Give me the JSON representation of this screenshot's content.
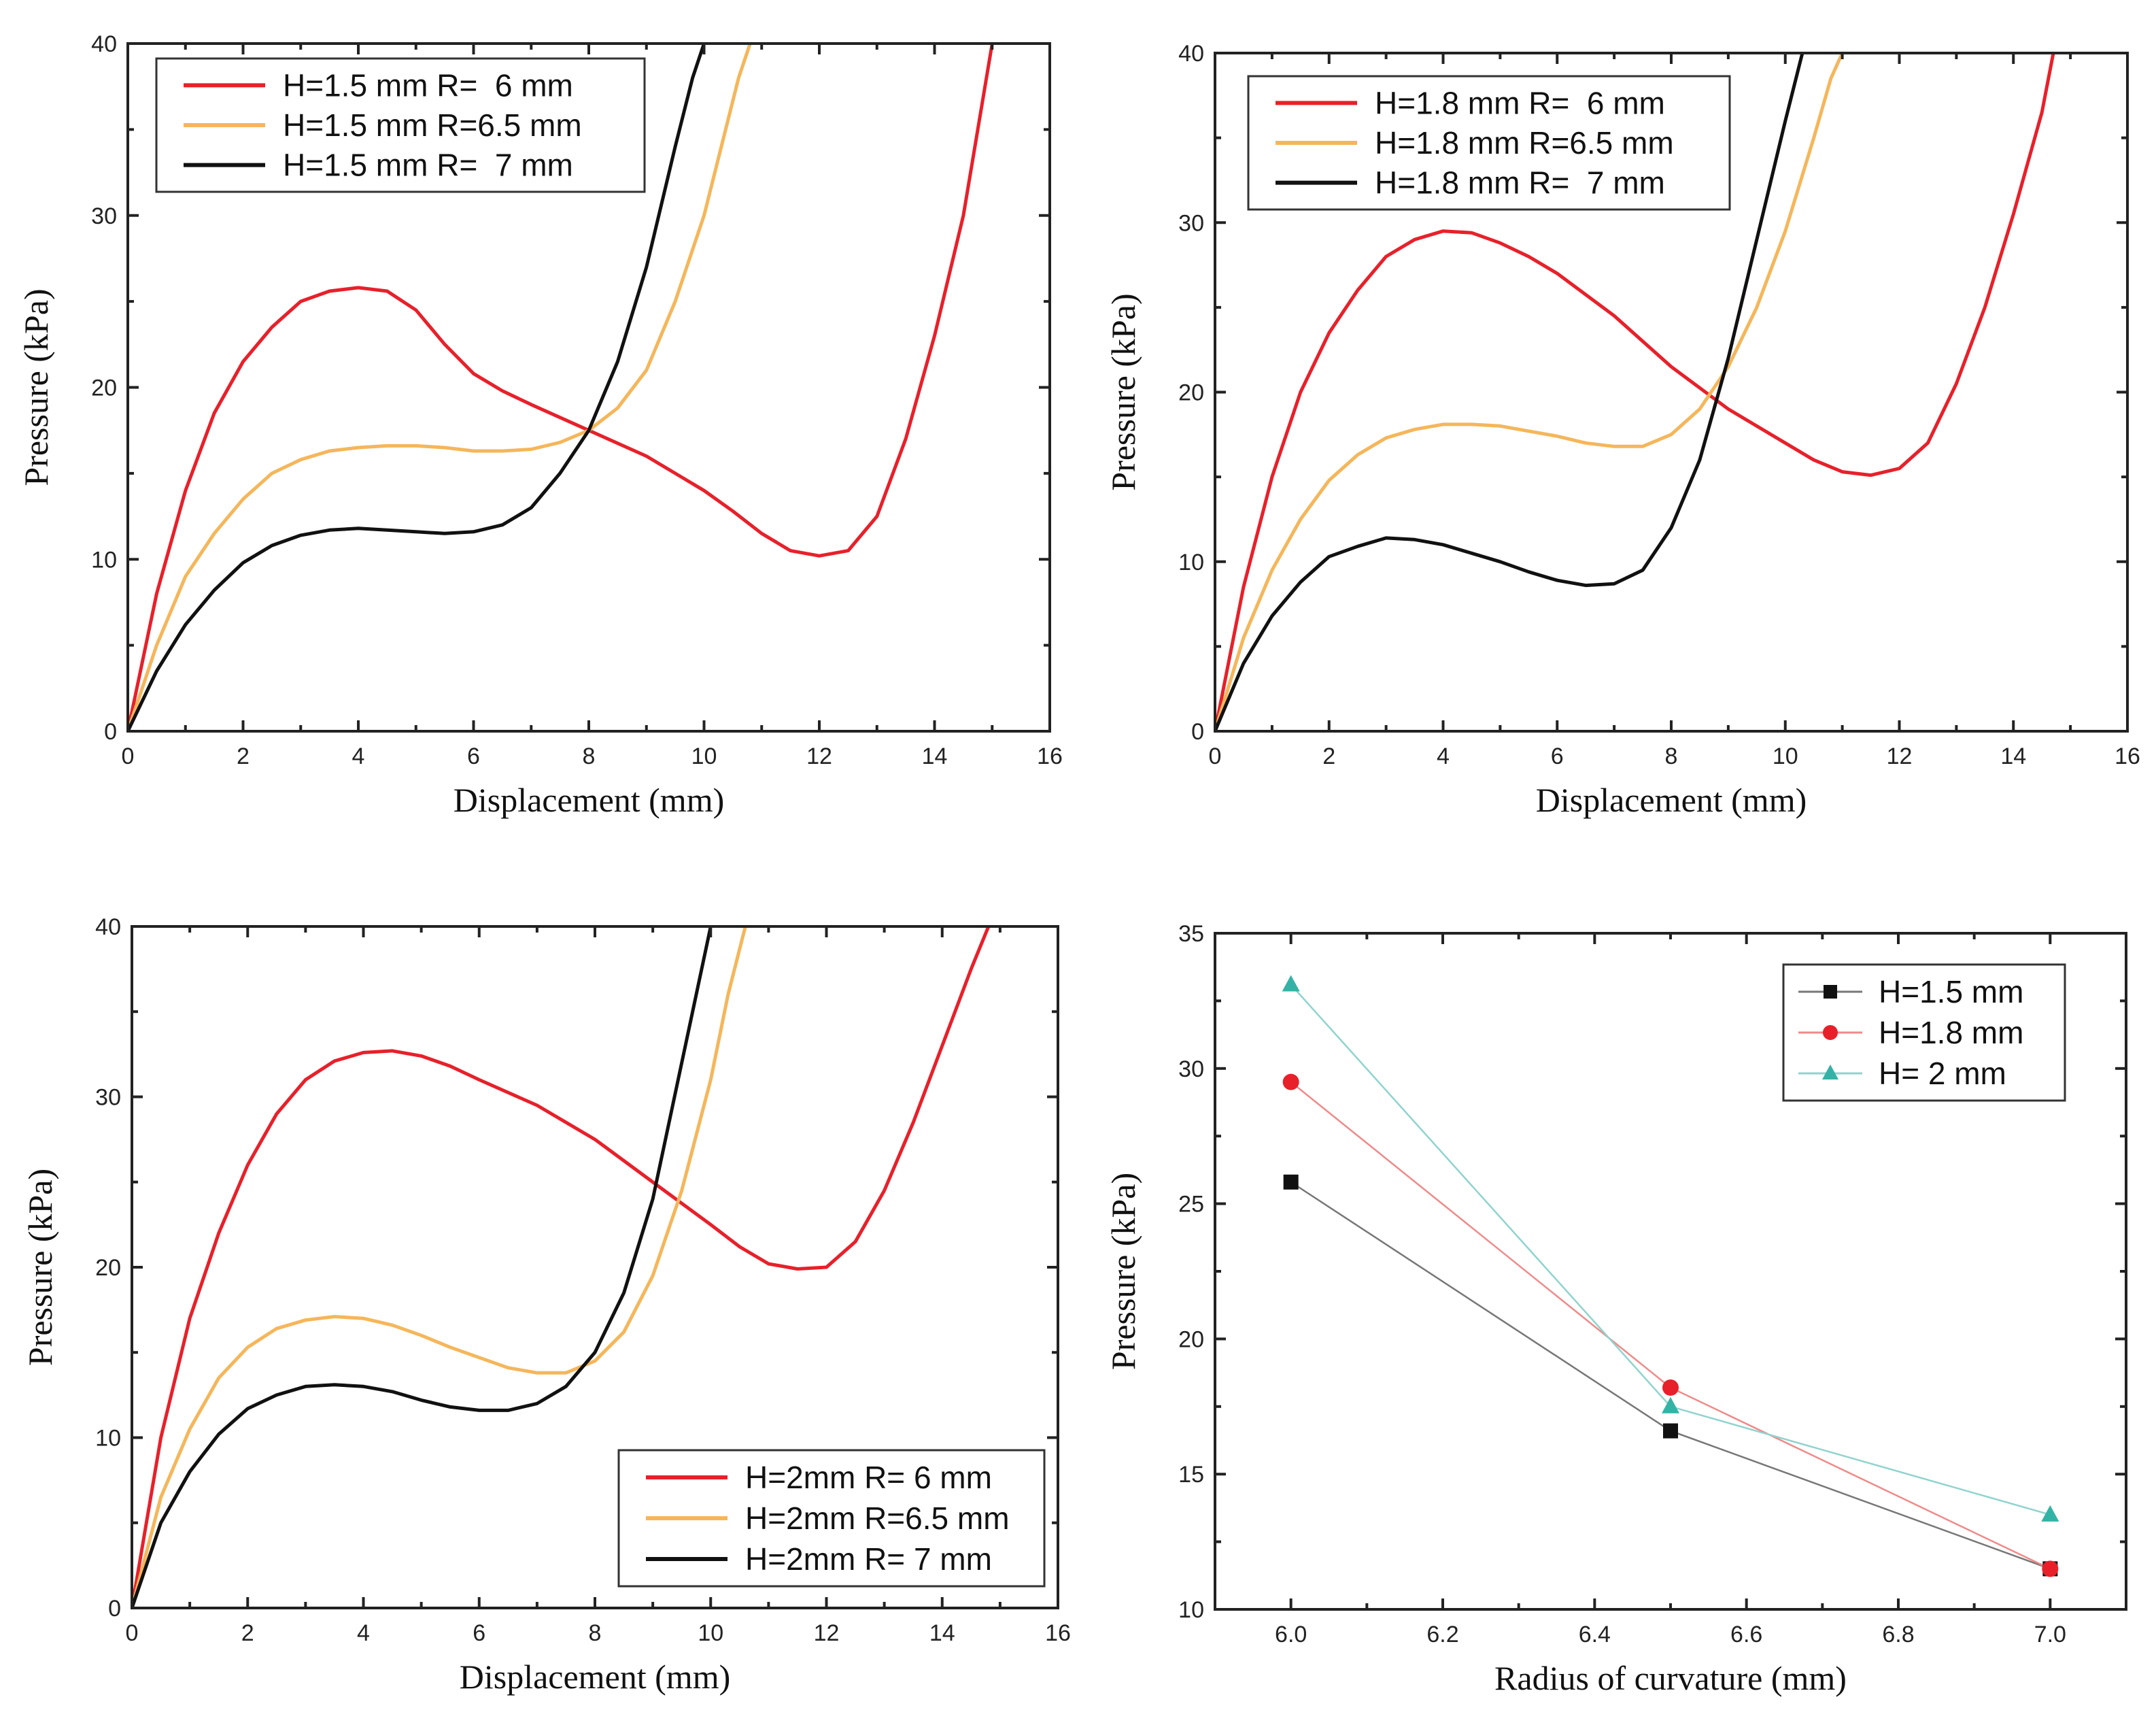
{
  "colors": {
    "red": "#e8202a",
    "orange": "#f5b65a",
    "black": "#111111",
    "pink": "#f08a8a",
    "teal": "#33b3a6",
    "thin_black": "#777777"
  },
  "chart_data": [
    {
      "type": "line",
      "xlabel": "Displacement (mm)",
      "ylabel": "Pressure (kPa)",
      "xlim": [
        0,
        16
      ],
      "ylim": [
        0,
        40
      ],
      "xticks": [
        0,
        2,
        4,
        6,
        8,
        10,
        12,
        14,
        16
      ],
      "yticks": [
        0,
        10,
        20,
        30,
        40
      ],
      "legend_position": "top-left",
      "series": [
        {
          "name": "H=1.5 mm R=  6 mm",
          "color": "#e8202a",
          "x": [
            0,
            0.5,
            1,
            1.5,
            2,
            2.5,
            3,
            3.5,
            4,
            4.5,
            5,
            5.5,
            6,
            6.5,
            7,
            8,
            9,
            10,
            10.5,
            11,
            11.5,
            12,
            12.5,
            13,
            13.5,
            14,
            14.5,
            15
          ],
          "y": [
            0,
            8,
            14,
            18.5,
            21.5,
            23.5,
            25,
            25.6,
            25.8,
            25.6,
            24.5,
            22.5,
            20.8,
            19.8,
            19,
            17.5,
            16,
            14,
            12.8,
            11.5,
            10.5,
            10.2,
            10.5,
            12.5,
            17,
            23,
            30,
            40
          ]
        },
        {
          "name": "H=1.5 mm R=6.5 mm",
          "color": "#f5b65a",
          "x": [
            0,
            0.5,
            1,
            1.5,
            2,
            2.5,
            3,
            3.5,
            4,
            4.5,
            5,
            5.5,
            6,
            6.5,
            7,
            7.5,
            8,
            8.5,
            9,
            9.5,
            10,
            10.3,
            10.6,
            10.8
          ],
          "y": [
            0,
            5,
            9,
            11.5,
            13.5,
            15,
            15.8,
            16.3,
            16.5,
            16.6,
            16.6,
            16.5,
            16.3,
            16.3,
            16.4,
            16.8,
            17.5,
            18.8,
            21,
            25,
            30,
            34,
            38,
            40
          ]
        },
        {
          "name": "H=1.5 mm R=  7 mm",
          "color": "#111111",
          "x": [
            0,
            0.5,
            1,
            1.5,
            2,
            2.5,
            3,
            3.5,
            4,
            4.5,
            5,
            5.5,
            6,
            6.5,
            7,
            7.5,
            8,
            8.5,
            9,
            9.5,
            9.8,
            10
          ],
          "y": [
            0,
            3.5,
            6.2,
            8.2,
            9.8,
            10.8,
            11.4,
            11.7,
            11.8,
            11.7,
            11.6,
            11.5,
            11.6,
            12,
            13,
            15,
            17.5,
            21.5,
            27,
            34,
            38,
            40
          ]
        }
      ]
    },
    {
      "type": "line",
      "xlabel": "Displacement (mm)",
      "ylabel": "Pressure (kPa)",
      "xlim": [
        0,
        16
      ],
      "ylim": [
        0,
        40
      ],
      "xticks": [
        0,
        2,
        4,
        6,
        8,
        10,
        12,
        14,
        16
      ],
      "yticks": [
        0,
        10,
        20,
        30,
        40
      ],
      "legend_position": "top-left",
      "series": [
        {
          "name": "H=1.8 mm R=  6 mm",
          "color": "#e8202a",
          "x": [
            0,
            0.5,
            1,
            1.5,
            2,
            2.5,
            3,
            3.5,
            4,
            4.5,
            5,
            5.5,
            6,
            7,
            8,
            9,
            10,
            10.5,
            11,
            11.5,
            12,
            12.5,
            13,
            13.5,
            14,
            14.5,
            14.7
          ],
          "y": [
            0,
            8.5,
            15,
            20,
            23.5,
            26,
            28,
            29,
            29.5,
            29.4,
            28.8,
            28,
            27,
            24.5,
            21.5,
            19,
            17,
            16,
            15.3,
            15.1,
            15.5,
            17,
            20.5,
            25,
            30.5,
            36.5,
            40
          ]
        },
        {
          "name": "H=1.8 mm R=6.5 mm",
          "color": "#f5b65a",
          "x": [
            0,
            0.5,
            1,
            1.5,
            2,
            2.5,
            3,
            3.5,
            4,
            4.5,
            5,
            5.5,
            6,
            6.5,
            7,
            7.5,
            8,
            8.5,
            9,
            9.5,
            10,
            10.5,
            10.8,
            11
          ],
          "y": [
            0,
            5.5,
            9.5,
            12.5,
            14.8,
            16.3,
            17.3,
            17.8,
            18.1,
            18.1,
            18,
            17.7,
            17.4,
            17,
            16.8,
            16.8,
            17.5,
            19,
            21.5,
            25,
            29.5,
            35,
            38.5,
            40
          ]
        },
        {
          "name": "H=1.8 mm R=  7 mm",
          "color": "#111111",
          "x": [
            0,
            0.5,
            1,
            1.5,
            2,
            2.5,
            3,
            3.5,
            4,
            4.5,
            5,
            5.5,
            6,
            6.5,
            7,
            7.5,
            8,
            8.5,
            9,
            9.5,
            10,
            10.3
          ],
          "y": [
            0,
            4,
            6.8,
            8.8,
            10.3,
            10.9,
            11.4,
            11.3,
            11,
            10.5,
            10,
            9.4,
            8.9,
            8.6,
            8.7,
            9.5,
            12,
            16,
            22,
            29,
            36,
            40
          ]
        }
      ]
    },
    {
      "type": "line",
      "xlabel": "Displacement (mm)",
      "ylabel": "Pressure (kPa)",
      "xlim": [
        0,
        16
      ],
      "ylim": [
        0,
        40
      ],
      "xticks": [
        0,
        2,
        4,
        6,
        8,
        10,
        12,
        14,
        16
      ],
      "yticks": [
        0,
        10,
        20,
        30,
        40
      ],
      "legend_position": "bottom-right",
      "series": [
        {
          "name": "H=2mm R= 6 mm",
          "color": "#e8202a",
          "x": [
            0,
            0.5,
            1,
            1.5,
            2,
            2.5,
            3,
            3.5,
            4,
            4.5,
            5,
            5.5,
            6,
            7,
            8,
            9,
            10,
            10.5,
            11,
            11.5,
            12,
            12.5,
            13,
            13.5,
            14,
            14.5,
            14.8
          ],
          "y": [
            0,
            10,
            17,
            22,
            26,
            29,
            31,
            32.1,
            32.6,
            32.7,
            32.4,
            31.8,
            31,
            29.5,
            27.5,
            25,
            22.5,
            21.2,
            20.2,
            19.9,
            20,
            21.5,
            24.5,
            28.5,
            33,
            37.5,
            40
          ]
        },
        {
          "name": "H=2mm R=6.5 mm",
          "color": "#f5b65a",
          "x": [
            0,
            0.5,
            1,
            1.5,
            2,
            2.5,
            3,
            3.5,
            4,
            4.5,
            5,
            5.5,
            6,
            6.5,
            7,
            7.5,
            8,
            8.5,
            9,
            9.5,
            10,
            10.3,
            10.6
          ],
          "y": [
            0,
            6.5,
            10.5,
            13.5,
            15.3,
            16.4,
            16.9,
            17.1,
            17,
            16.6,
            16,
            15.3,
            14.7,
            14.1,
            13.8,
            13.8,
            14.5,
            16.2,
            19.5,
            24.5,
            31,
            36,
            40
          ]
        },
        {
          "name": "H=2mm R= 7 mm",
          "color": "#111111",
          "x": [
            0,
            0.5,
            1,
            1.5,
            2,
            2.5,
            3,
            3.5,
            4,
            4.5,
            5,
            5.5,
            6,
            6.5,
            7,
            7.5,
            8,
            8.5,
            9,
            9.5,
            10
          ],
          "y": [
            0,
            5,
            8,
            10.2,
            11.7,
            12.5,
            13,
            13.1,
            13,
            12.7,
            12.2,
            11.8,
            11.6,
            11.6,
            12,
            13,
            15,
            18.5,
            24,
            32,
            40
          ]
        }
      ]
    },
    {
      "type": "line",
      "markers": true,
      "xlabel": "Radius of curvature (mm)",
      "ylabel": "Pressure (kPa)",
      "xlim": [
        5.9,
        7.1
      ],
      "ylim": [
        10,
        35
      ],
      "xticks": [
        "6.0",
        "6.2",
        "6.4",
        "6.6",
        "6.8",
        "7.0"
      ],
      "yticks": [
        10,
        15,
        20,
        25,
        30,
        35
      ],
      "legend_position": "top-right",
      "x": [
        6.0,
        6.5,
        7.0
      ],
      "series": [
        {
          "name": "H=1.5 mm",
          "marker": "square",
          "color": "#111111",
          "line_color": "#777777",
          "values": [
            25.8,
            16.6,
            11.5
          ]
        },
        {
          "name": "H=1.8 mm",
          "marker": "circle",
          "color": "#e8202a",
          "line_color": "#f08a8a",
          "values": [
            29.5,
            18.2,
            11.5
          ]
        },
        {
          "name": "H=  2 mm",
          "marker": "triangle",
          "color": "#33b3a6",
          "line_color": "#8fd4cd",
          "values": [
            33.1,
            17.5,
            13.5
          ]
        }
      ]
    }
  ]
}
